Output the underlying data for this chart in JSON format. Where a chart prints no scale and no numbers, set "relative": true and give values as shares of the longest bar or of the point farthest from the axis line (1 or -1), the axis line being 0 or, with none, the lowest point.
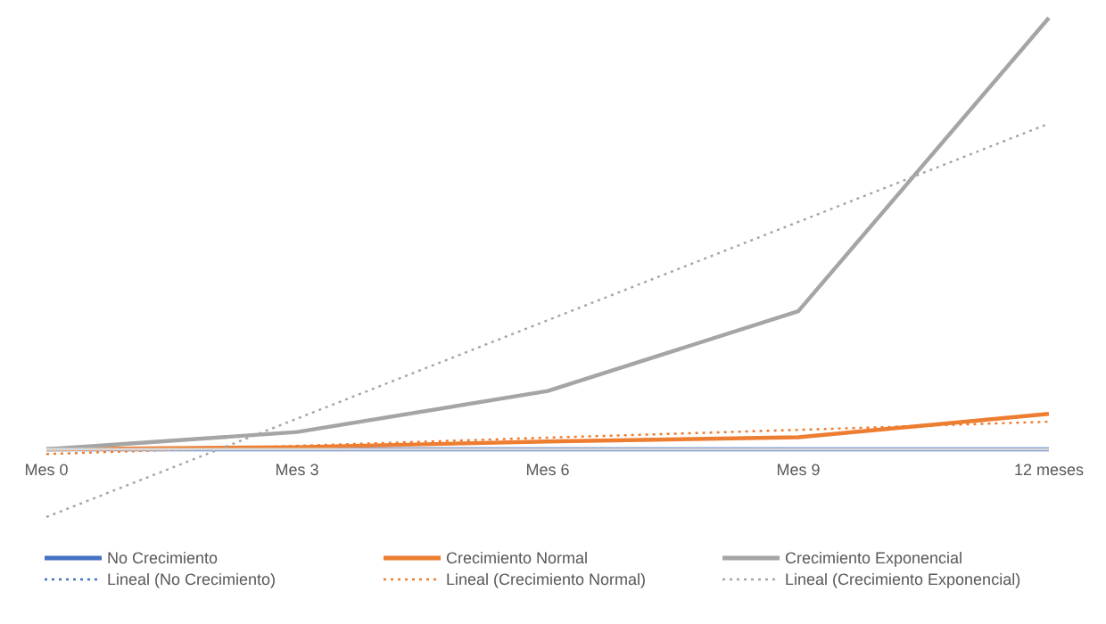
{
  "chart_data": {
    "type": "line",
    "relative": true,
    "categories": [
      "Mes 0",
      "Mes 3",
      "Mes 6",
      "Mes 9",
      "12 meses"
    ],
    "series": [
      {
        "name": "No Crecimiento",
        "color": "#4472c4",
        "values": [
          0,
          0,
          0,
          0,
          0
        ]
      },
      {
        "name": "Crecimiento Normal",
        "color": "#ed7d31",
        "values": [
          0,
          0.005,
          0.018,
          0.028,
          0.082
        ]
      },
      {
        "name": "Crecimiento Exponencial",
        "color": "#a5a5a5",
        "values": [
          0,
          0.04,
          0.135,
          0.32,
          1
        ]
      },
      {
        "name": "Lineal (No Crecimiento)",
        "color": "#4472c4",
        "line_style": "dotted",
        "values": [
          null,
          null,
          null,
          null,
          null
        ]
      },
      {
        "name": "Lineal (Crecimiento Normal)",
        "color": "#ed7d31",
        "line_style": "dotted",
        "values": [
          -0.011,
          0.008,
          0.027,
          0.045,
          0.064
        ]
      },
      {
        "name": "Lineal (Crecimiento Exponencial)",
        "color": "#a5a5a5",
        "line_style": "dotted",
        "values": [
          -0.157,
          0.071,
          0.299,
          0.527,
          0.755
        ]
      }
    ],
    "line_style": "solid",
    "marker": "none",
    "grid": false,
    "legend": "bottom"
  }
}
